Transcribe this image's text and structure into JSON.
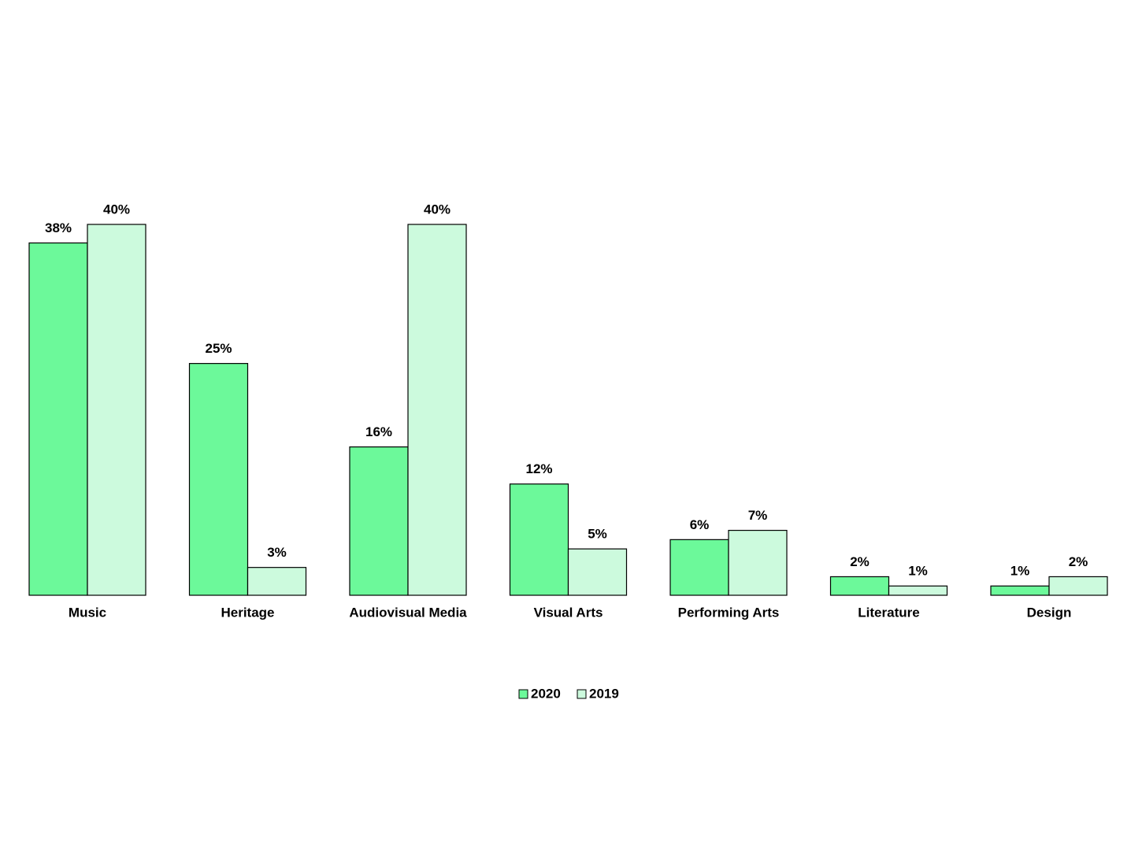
{
  "chart_data": {
    "type": "bar",
    "categories": [
      "Music",
      "Heritage",
      "Audiovisual Media",
      "Visual Arts",
      "Performing Arts",
      "Literature",
      "Design"
    ],
    "series": [
      {
        "name": "2020",
        "color": "#6cf99a",
        "values": [
          38,
          25,
          16,
          12,
          6,
          2,
          1
        ],
        "value_labels": [
          "38%",
          "25%",
          "16%",
          "12%",
          "6%",
          "2%",
          "1%"
        ]
      },
      {
        "name": "2019",
        "color": "#ccfadd",
        "values": [
          40,
          3,
          40,
          5,
          7,
          1,
          2
        ],
        "value_labels": [
          "40%",
          "3%",
          "40%",
          "5%",
          "7%",
          "1%",
          "2%"
        ]
      }
    ],
    "legend": "bottom"
  }
}
